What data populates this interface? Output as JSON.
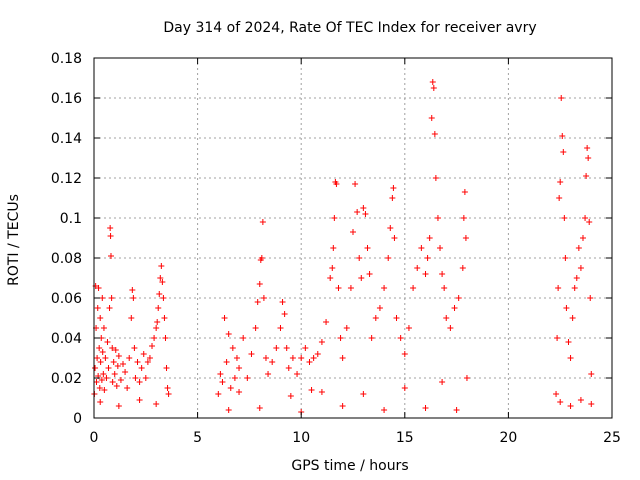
{
  "chart_data": {
    "type": "scatter",
    "title": "Day 314 of 2024, Rate Of TEC Index for receiver avry",
    "xlabel": "GPS time / hours",
    "ylabel": "ROTI / TECUs",
    "xlim": [
      0,
      25
    ],
    "ylim": [
      0,
      0.18
    ],
    "xticks": [
      0,
      5,
      10,
      15,
      20,
      25
    ],
    "xtick_labels": [
      "0",
      "5",
      "10",
      "15",
      "20",
      "25"
    ],
    "yticks": [
      0,
      0.02,
      0.04,
      0.06,
      0.08,
      0.1,
      0.12,
      0.14,
      0.16,
      0.18
    ],
    "ytick_labels": [
      "0",
      "0.02",
      "0.04",
      "0.06",
      "0.08",
      "0.1",
      "0.12",
      "0.14",
      "0.16",
      "0.18"
    ],
    "grid": true,
    "marker": "+",
    "color": "#ff0000",
    "series": [
      {
        "name": "ROTI",
        "points": [
          [
            0.02,
            0.012
          ],
          [
            0.05,
            0.025
          ],
          [
            0.08,
            0.066
          ],
          [
            0.1,
            0.045
          ],
          [
            0.12,
            0.018
          ],
          [
            0.15,
            0.03
          ],
          [
            0.18,
            0.055
          ],
          [
            0.2,
            0.021
          ],
          [
            0.22,
            0.065
          ],
          [
            0.25,
            0.035
          ],
          [
            0.28,
            0.015
          ],
          [
            0.3,
            0.05
          ],
          [
            0.32,
            0.028
          ],
          [
            0.35,
            0.04
          ],
          [
            0.38,
            0.019
          ],
          [
            0.4,
            0.06
          ],
          [
            0.42,
            0.033
          ],
          [
            0.45,
            0.022
          ],
          [
            0.48,
            0.045
          ],
          [
            0.5,
            0.014
          ],
          [
            0.55,
            0.03
          ],
          [
            0.6,
            0.02
          ],
          [
            0.65,
            0.038
          ],
          [
            0.7,
            0.025
          ],
          [
            0.75,
            0.055
          ],
          [
            0.78,
            0.095
          ],
          [
            0.8,
            0.091
          ],
          [
            0.82,
            0.081
          ],
          [
            0.85,
            0.06
          ],
          [
            0.88,
            0.035
          ],
          [
            0.9,
            0.018
          ],
          [
            0.95,
            0.028
          ],
          [
            1.0,
            0.022
          ],
          [
            1.05,
            0.034
          ],
          [
            1.1,
            0.016
          ],
          [
            1.15,
            0.026
          ],
          [
            1.2,
            0.031
          ],
          [
            1.3,
            0.019
          ],
          [
            1.4,
            0.027
          ],
          [
            1.5,
            0.023
          ],
          [
            1.6,
            0.015
          ],
          [
            1.7,
            0.03
          ],
          [
            1.8,
            0.05
          ],
          [
            1.85,
            0.064
          ],
          [
            1.9,
            0.06
          ],
          [
            1.95,
            0.035
          ],
          [
            2.0,
            0.02
          ],
          [
            2.1,
            0.028
          ],
          [
            2.2,
            0.018
          ],
          [
            2.3,
            0.025
          ],
          [
            2.4,
            0.032
          ],
          [
            2.5,
            0.02
          ],
          [
            2.6,
            0.028
          ],
          [
            2.7,
            0.03
          ],
          [
            2.8,
            0.036
          ],
          [
            2.9,
            0.04
          ],
          [
            3.0,
            0.045
          ],
          [
            3.05,
            0.048
          ],
          [
            3.1,
            0.055
          ],
          [
            3.15,
            0.062
          ],
          [
            3.2,
            0.07
          ],
          [
            3.25,
            0.076
          ],
          [
            3.3,
            0.068
          ],
          [
            3.35,
            0.06
          ],
          [
            3.4,
            0.05
          ],
          [
            3.45,
            0.04
          ],
          [
            3.5,
            0.025
          ],
          [
            3.55,
            0.015
          ],
          [
            3.6,
            0.012
          ],
          [
            0.3,
            0.008
          ],
          [
            1.2,
            0.006
          ],
          [
            2.2,
            0.009
          ],
          [
            3.0,
            0.007
          ],
          [
            6.0,
            0.012
          ],
          [
            6.1,
            0.022
          ],
          [
            6.2,
            0.018
          ],
          [
            6.3,
            0.05
          ],
          [
            6.4,
            0.028
          ],
          [
            6.5,
            0.042
          ],
          [
            6.6,
            0.015
          ],
          [
            6.7,
            0.035
          ],
          [
            6.8,
            0.02
          ],
          [
            6.9,
            0.03
          ],
          [
            7.0,
            0.025
          ],
          [
            7.2,
            0.04
          ],
          [
            7.4,
            0.02
          ],
          [
            7.6,
            0.032
          ],
          [
            7.8,
            0.045
          ],
          [
            7.9,
            0.058
          ],
          [
            8.0,
            0.067
          ],
          [
            8.05,
            0.079
          ],
          [
            8.1,
            0.08
          ],
          [
            8.15,
            0.098
          ],
          [
            8.2,
            0.06
          ],
          [
            8.3,
            0.03
          ],
          [
            8.4,
            0.022
          ],
          [
            8.6,
            0.028
          ],
          [
            8.8,
            0.035
          ],
          [
            9.0,
            0.045
          ],
          [
            9.1,
            0.058
          ],
          [
            9.2,
            0.052
          ],
          [
            9.3,
            0.035
          ],
          [
            9.4,
            0.025
          ],
          [
            9.6,
            0.03
          ],
          [
            9.8,
            0.022
          ],
          [
            10.0,
            0.03
          ],
          [
            10.2,
            0.035
          ],
          [
            10.4,
            0.028
          ],
          [
            10.6,
            0.03
          ],
          [
            10.8,
            0.032
          ],
          [
            11.0,
            0.038
          ],
          [
            11.2,
            0.048
          ],
          [
            11.4,
            0.07
          ],
          [
            11.5,
            0.075
          ],
          [
            11.55,
            0.085
          ],
          [
            11.6,
            0.1
          ],
          [
            11.65,
            0.118
          ],
          [
            11.7,
            0.117
          ],
          [
            11.8,
            0.065
          ],
          [
            11.9,
            0.04
          ],
          [
            12.0,
            0.03
          ],
          [
            12.2,
            0.045
          ],
          [
            12.4,
            0.065
          ],
          [
            12.5,
            0.093
          ],
          [
            12.6,
            0.117
          ],
          [
            12.7,
            0.103
          ],
          [
            12.8,
            0.08
          ],
          [
            12.9,
            0.07
          ],
          [
            13.0,
            0.105
          ],
          [
            13.1,
            0.102
          ],
          [
            13.2,
            0.085
          ],
          [
            13.3,
            0.072
          ],
          [
            13.4,
            0.04
          ],
          [
            13.6,
            0.05
          ],
          [
            13.8,
            0.055
          ],
          [
            14.0,
            0.065
          ],
          [
            14.2,
            0.08
          ],
          [
            14.3,
            0.095
          ],
          [
            14.4,
            0.11
          ],
          [
            14.45,
            0.115
          ],
          [
            14.5,
            0.09
          ],
          [
            14.6,
            0.05
          ],
          [
            14.8,
            0.04
          ],
          [
            15.0,
            0.032
          ],
          [
            15.2,
            0.045
          ],
          [
            15.4,
            0.065
          ],
          [
            15.6,
            0.075
          ],
          [
            15.8,
            0.085
          ],
          [
            16.0,
            0.072
          ],
          [
            16.1,
            0.08
          ],
          [
            16.2,
            0.09
          ],
          [
            16.3,
            0.15
          ],
          [
            16.35,
            0.168
          ],
          [
            16.4,
            0.165
          ],
          [
            16.45,
            0.142
          ],
          [
            16.5,
            0.12
          ],
          [
            16.6,
            0.1
          ],
          [
            16.7,
            0.085
          ],
          [
            16.8,
            0.072
          ],
          [
            16.9,
            0.065
          ],
          [
            17.0,
            0.05
          ],
          [
            17.2,
            0.045
          ],
          [
            17.4,
            0.055
          ],
          [
            17.6,
            0.06
          ],
          [
            17.8,
            0.075
          ],
          [
            17.85,
            0.1
          ],
          [
            17.9,
            0.113
          ],
          [
            17.95,
            0.09
          ],
          [
            18.0,
            0.02
          ],
          [
            6.5,
            0.004
          ],
          [
            8.0,
            0.005
          ],
          [
            10.0,
            0.003
          ],
          [
            12.0,
            0.006
          ],
          [
            14.0,
            0.004
          ],
          [
            16.0,
            0.005
          ],
          [
            17.5,
            0.004
          ],
          [
            9.5,
            0.011
          ],
          [
            10.5,
            0.014
          ],
          [
            11.0,
            0.013
          ],
          [
            13.0,
            0.012
          ],
          [
            15.0,
            0.015
          ],
          [
            16.8,
            0.018
          ],
          [
            7.0,
            0.013
          ],
          [
            22.3,
            0.012
          ],
          [
            22.35,
            0.04
          ],
          [
            22.4,
            0.065
          ],
          [
            22.45,
            0.11
          ],
          [
            22.5,
            0.118
          ],
          [
            22.55,
            0.16
          ],
          [
            22.6,
            0.141
          ],
          [
            22.65,
            0.133
          ],
          [
            22.7,
            0.1
          ],
          [
            22.75,
            0.08
          ],
          [
            22.8,
            0.055
          ],
          [
            22.9,
            0.038
          ],
          [
            23.0,
            0.03
          ],
          [
            23.1,
            0.05
          ],
          [
            23.2,
            0.065
          ],
          [
            23.3,
            0.07
          ],
          [
            23.4,
            0.085
          ],
          [
            23.5,
            0.075
          ],
          [
            23.6,
            0.09
          ],
          [
            23.7,
            0.1
          ],
          [
            23.75,
            0.121
          ],
          [
            23.8,
            0.135
          ],
          [
            23.85,
            0.13
          ],
          [
            23.9,
            0.098
          ],
          [
            23.95,
            0.06
          ],
          [
            24.0,
            0.022
          ],
          [
            22.5,
            0.008
          ],
          [
            23.0,
            0.006
          ],
          [
            23.5,
            0.009
          ],
          [
            24.0,
            0.007
          ]
        ]
      }
    ]
  }
}
